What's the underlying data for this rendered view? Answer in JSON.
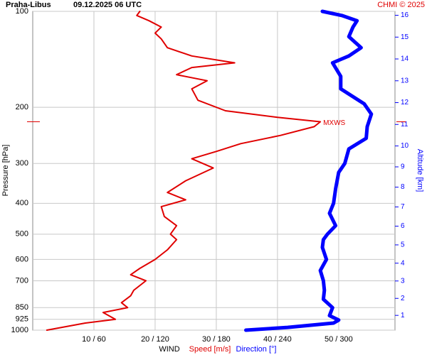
{
  "chart_data": {
    "type": "line",
    "title": "Praha-Libus",
    "subtitle": "09.12.2025 06 UTC",
    "credit": "CHMI © 2025",
    "ylabel": "Pressure [hPa]",
    "y2label": "Altitude [km]",
    "xlabel": "WIND",
    "ylog": true,
    "ylim": [
      100,
      1000
    ],
    "yticks": [
      100,
      200,
      300,
      400,
      500,
      600,
      700,
      850,
      925,
      1000
    ],
    "y2ticks": [
      1,
      2,
      3,
      4,
      5,
      6,
      7,
      8,
      9,
      10,
      11,
      12,
      13,
      14,
      15,
      16
    ],
    "xlim": [
      0,
      59.2
    ],
    "x2lim": [
      0,
      355.2
    ],
    "xticks": [
      {
        "value": 10,
        "label": "10 / 60"
      },
      {
        "value": 20,
        "label": "20 / 120"
      },
      {
        "value": 30,
        "label": "30 / 180"
      },
      {
        "value": 40,
        "label": "40 / 240"
      },
      {
        "value": 50,
        "label": "50 / 300"
      }
    ],
    "grid": true,
    "series": [
      {
        "name": "Speed [m/s]",
        "color": "#e00000",
        "pressure": [
          1000,
          950,
          925,
          880,
          850,
          820,
          780,
          750,
          700,
          670,
          640,
          600,
          560,
          520,
          500,
          470,
          440,
          410,
          390,
          370,
          340,
          310,
          290,
          275,
          260,
          245,
          230,
          222,
          215,
          205,
          190,
          175,
          165,
          158,
          150,
          145,
          138,
          130,
          122,
          117,
          112,
          107,
          103,
          100
        ],
        "values": [
          2.3,
          8.6,
          13.5,
          11.5,
          15.5,
          14.5,
          16,
          16.5,
          18.5,
          16,
          17.5,
          20,
          22,
          23.5,
          22.5,
          23.5,
          21.5,
          21,
          25,
          22,
          25,
          29.5,
          26,
          30,
          34,
          40.5,
          46,
          47,
          40,
          31.5,
          27,
          26,
          28.5,
          23.5,
          26,
          33,
          26,
          22,
          21,
          20,
          21,
          19,
          17,
          17.5
        ]
      },
      {
        "name": "Direction [°]",
        "color": "#0000ff",
        "axis": "x2",
        "pressure": [
          1000,
          980,
          950,
          930,
          900,
          850,
          800,
          750,
          700,
          650,
          600,
          550,
          520,
          500,
          470,
          430,
          400,
          360,
          320,
          300,
          270,
          250,
          230,
          210,
          195,
          175,
          160,
          145,
          138,
          130,
          120,
          112,
          107,
          103,
          100
        ],
        "values": [
          209,
          250,
          295,
          300,
          291,
          294,
          285,
          286,
          285,
          282,
          288,
          284,
          285,
          289,
          297,
          291,
          295,
          297,
          300,
          306,
          310,
          327,
          328,
          332,
          325,
          302,
          302,
          294,
          310,
          322,
          310,
          314,
          318,
          303,
          284
        ]
      }
    ],
    "annotations": [
      {
        "text": "MXWS",
        "pressure": 222,
        "speed": 47
      }
    ]
  }
}
